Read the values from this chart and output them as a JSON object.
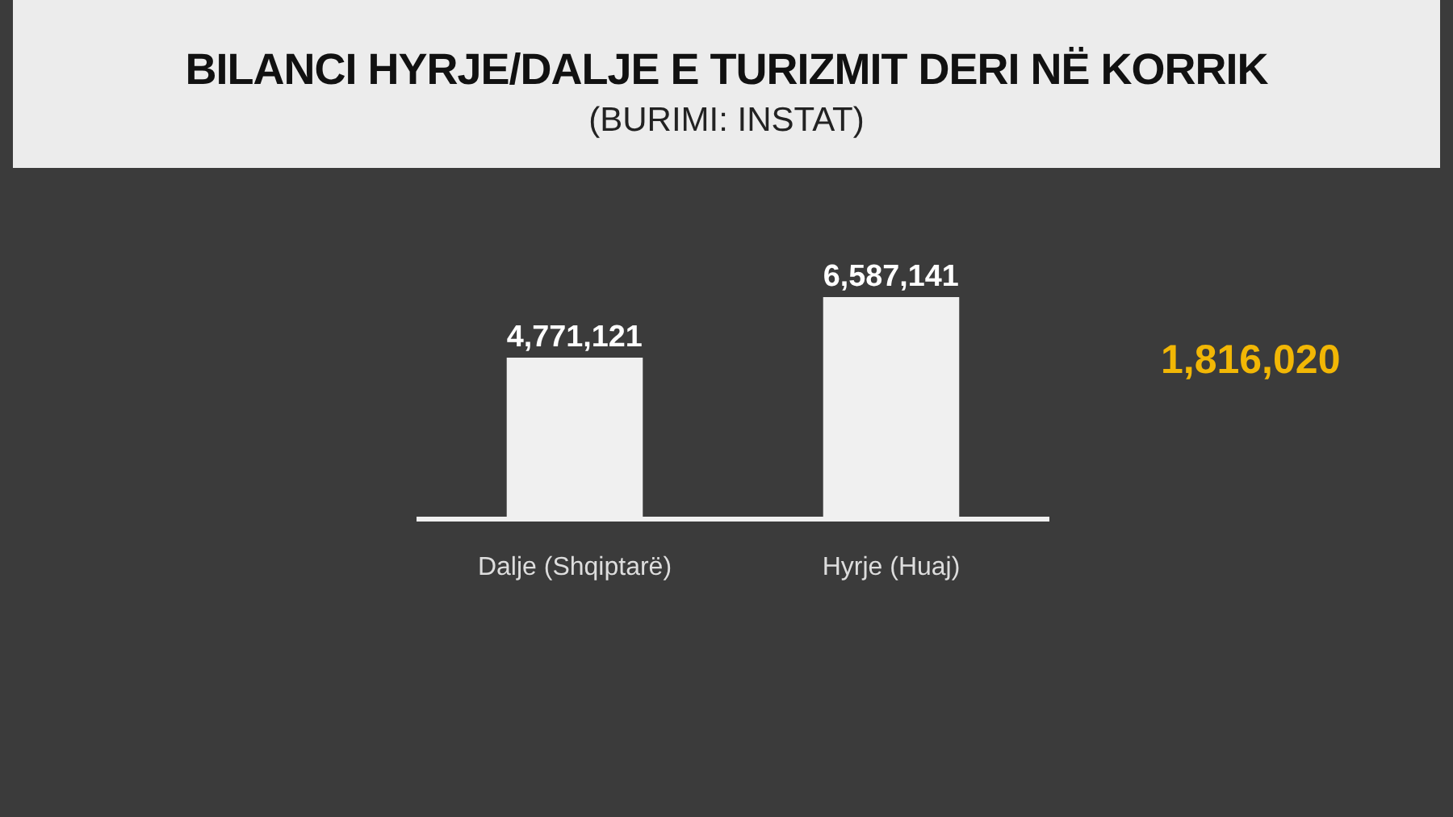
{
  "chart_data": {
    "type": "bar",
    "title": "BILANCI HYRJE/DALJE E TURIZMIT DERI NË KORRIK",
    "subtitle": "(BURIMI: INSTAT)",
    "categories": [
      "Dalje (Shqiptarë)",
      "Hyrje (Huaj)"
    ],
    "values": [
      4771121,
      6587141
    ],
    "value_labels": [
      "4,771,121",
      "6,587,141"
    ],
    "color": "#f0f0f0",
    "annotations": [
      "1,816,020"
    ]
  }
}
